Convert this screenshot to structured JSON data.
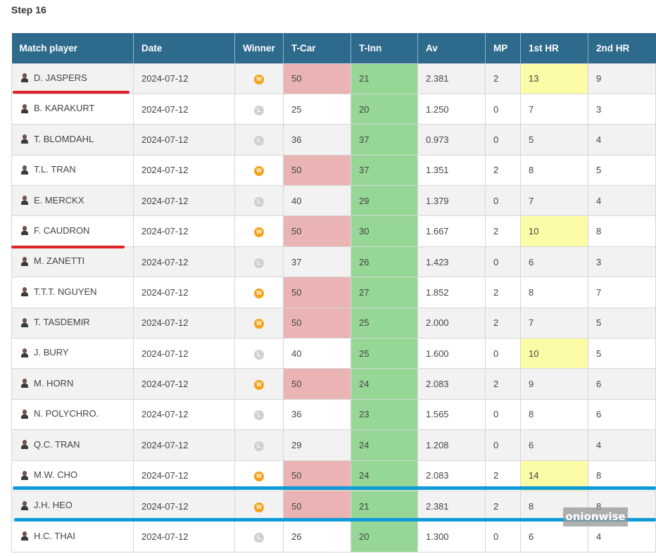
{
  "step_title": "Step 16",
  "columns": [
    "Match player",
    "Date",
    "Winner",
    "T-Car",
    "T-Inn",
    "Av",
    "MP",
    "1st HR",
    "2nd HR"
  ],
  "colors": {
    "header_bg": "#2e6a8c",
    "tcar_highlight": "#ebb4b4",
    "tinn_highlight": "#96d796",
    "hr_highlight": "#fdfca6",
    "winner_badge": "#f5a21b",
    "loser_badge": "#d0d0d0",
    "red_underline": "#e0202a",
    "blue_line": "#0f9bd7"
  },
  "rows": [
    {
      "player": "D. JASPERS",
      "date": "2024-07-12",
      "winner": "W",
      "tcar": "50",
      "tinn": "21",
      "av": "2.381",
      "mp": "2",
      "hr1": "13",
      "hr2": "9",
      "tcar_hi": true,
      "hr1_hi": true
    },
    {
      "player": "B. KARAKURT",
      "date": "2024-07-12",
      "winner": "L",
      "tcar": "25",
      "tinn": "20",
      "av": "1.250",
      "mp": "0",
      "hr1": "7",
      "hr2": "3",
      "tcar_hi": false,
      "hr1_hi": false
    },
    {
      "player": "T. BLOMDAHL",
      "date": "2024-07-12",
      "winner": "L",
      "tcar": "36",
      "tinn": "37",
      "av": "0.973",
      "mp": "0",
      "hr1": "5",
      "hr2": "4",
      "tcar_hi": false,
      "hr1_hi": false
    },
    {
      "player": "T.L. TRAN",
      "date": "2024-07-12",
      "winner": "W",
      "tcar": "50",
      "tinn": "37",
      "av": "1.351",
      "mp": "2",
      "hr1": "8",
      "hr2": "5",
      "tcar_hi": true,
      "hr1_hi": false
    },
    {
      "player": "E. MERCKX",
      "date": "2024-07-12",
      "winner": "L",
      "tcar": "40",
      "tinn": "29",
      "av": "1.379",
      "mp": "0",
      "hr1": "7",
      "hr2": "4",
      "tcar_hi": false,
      "hr1_hi": false
    },
    {
      "player": "F. CAUDRON",
      "date": "2024-07-12",
      "winner": "W",
      "tcar": "50",
      "tinn": "30",
      "av": "1.667",
      "mp": "2",
      "hr1": "10",
      "hr2": "8",
      "tcar_hi": true,
      "hr1_hi": true
    },
    {
      "player": "M. ZANETTI",
      "date": "2024-07-12",
      "winner": "L",
      "tcar": "37",
      "tinn": "26",
      "av": "1.423",
      "mp": "0",
      "hr1": "6",
      "hr2": "3",
      "tcar_hi": false,
      "hr1_hi": false
    },
    {
      "player": "T.T.T. NGUYEN",
      "date": "2024-07-12",
      "winner": "W",
      "tcar": "50",
      "tinn": "27",
      "av": "1.852",
      "mp": "2",
      "hr1": "8",
      "hr2": "7",
      "tcar_hi": true,
      "hr1_hi": false
    },
    {
      "player": "T. TASDEMIR",
      "date": "2024-07-12",
      "winner": "W",
      "tcar": "50",
      "tinn": "25",
      "av": "2.000",
      "mp": "2",
      "hr1": "7",
      "hr2": "5",
      "tcar_hi": true,
      "hr1_hi": false
    },
    {
      "player": "J. BURY",
      "date": "2024-07-12",
      "winner": "L",
      "tcar": "40",
      "tinn": "25",
      "av": "1.600",
      "mp": "0",
      "hr1": "10",
      "hr2": "5",
      "tcar_hi": false,
      "hr1_hi": true
    },
    {
      "player": "M. HORN",
      "date": "2024-07-12",
      "winner": "W",
      "tcar": "50",
      "tinn": "24",
      "av": "2.083",
      "mp": "2",
      "hr1": "9",
      "hr2": "6",
      "tcar_hi": true,
      "hr1_hi": false
    },
    {
      "player": "N. POLYCHRO.",
      "date": "2024-07-12",
      "winner": "L",
      "tcar": "36",
      "tinn": "23",
      "av": "1.565",
      "mp": "0",
      "hr1": "8",
      "hr2": "6",
      "tcar_hi": false,
      "hr1_hi": false
    },
    {
      "player": "Q.C. TRAN",
      "date": "2024-07-12",
      "winner": "L",
      "tcar": "29",
      "tinn": "24",
      "av": "1.208",
      "mp": "0",
      "hr1": "6",
      "hr2": "4",
      "tcar_hi": false,
      "hr1_hi": false
    },
    {
      "player": "M.W. CHO",
      "date": "2024-07-12",
      "winner": "W",
      "tcar": "50",
      "tinn": "24",
      "av": "2.083",
      "mp": "2",
      "hr1": "14",
      "hr2": "8",
      "tcar_hi": true,
      "hr1_hi": true
    },
    {
      "player": "J.H. HEO",
      "date": "2024-07-12",
      "winner": "W",
      "tcar": "50",
      "tinn": "21",
      "av": "2.381",
      "mp": "2",
      "hr1": "8",
      "hr2": "8",
      "tcar_hi": true,
      "hr1_hi": false
    },
    {
      "player": "H.C. THAI",
      "date": "2024-07-12",
      "winner": "L",
      "tcar": "26",
      "tinn": "20",
      "av": "1.300",
      "mp": "0",
      "hr1": "6",
      "hr2": "4",
      "tcar_hi": false,
      "hr1_hi": false
    }
  ],
  "watermark": "onionwise"
}
